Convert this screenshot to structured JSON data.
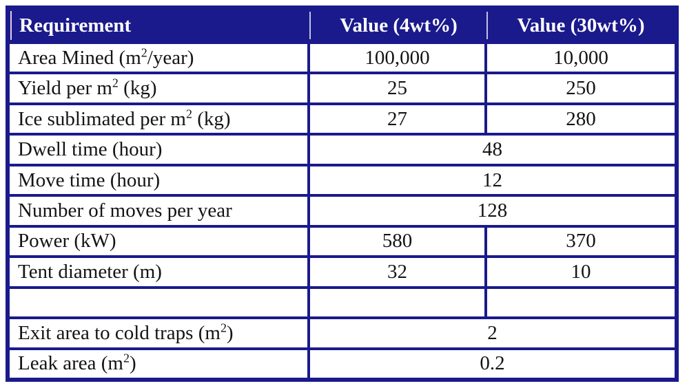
{
  "table": {
    "colors": {
      "navy": "#1a1a8c",
      "header_text": "#ffffff",
      "body_text": "#141414",
      "header_separator_light": "#c2c2e0",
      "header_separator_pink": "#eccbe2"
    },
    "headers": [
      {
        "label": "Requirement"
      },
      {
        "label": "Value (4wt%)"
      },
      {
        "label": "Value (30wt%)"
      }
    ],
    "rows": [
      {
        "label_pre": "Area Mined (m",
        "label_sup": "2",
        "label_post": "/year)",
        "v1": "100,000",
        "v2": "10,000"
      },
      {
        "label_pre": "Yield per m",
        "label_sup": "2",
        "label_post": " (kg)",
        "v1": "25",
        "v2": "250"
      },
      {
        "label_pre": "Ice sublimated per m",
        "label_sup": "2",
        "label_post": " (kg)",
        "v1": "27",
        "v2": "280"
      },
      {
        "label_pre": "Dwell time (hour)",
        "label_sup": "",
        "label_post": "",
        "value": "48"
      },
      {
        "label_pre": "Move time (hour)",
        "label_sup": "",
        "label_post": "",
        "value": "12"
      },
      {
        "label_pre": "Number of moves per year",
        "label_sup": "",
        "label_post": "",
        "value": "128"
      },
      {
        "label_pre": "Power (kW)",
        "label_sup": "",
        "label_post": "",
        "v1": "580",
        "v2": "370"
      },
      {
        "label_pre": "Tent diameter (m)",
        "label_sup": "",
        "label_post": "",
        "v1": "32",
        "v2": "10"
      },
      {
        "label_pre": "",
        "label_sup": "",
        "label_post": "",
        "v1": "",
        "v2": ""
      },
      {
        "label_pre": "Exit area to cold traps (m",
        "label_sup": "2",
        "label_post": ")",
        "value": "2"
      },
      {
        "label_pre": "Leak area (m",
        "label_sup": "2",
        "label_post": ")",
        "value": "0.2"
      }
    ]
  }
}
